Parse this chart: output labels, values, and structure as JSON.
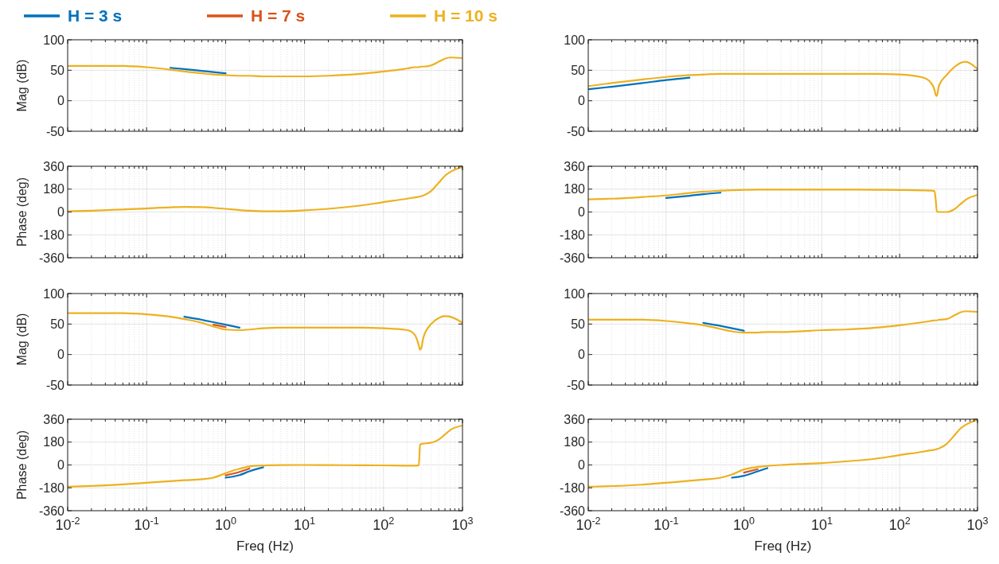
{
  "chart_data": [
    {
      "type": "line",
      "ylabel": "Mag (dB)",
      "log": "x",
      "grid": true,
      "legend": "top",
      "line_style": "solid",
      "tick_labels": "y",
      "xlim": [
        0.01,
        1000
      ],
      "ylim": [
        -50,
        100
      ],
      "yticks": [
        -50,
        0,
        50,
        100
      ],
      "xticks": [
        {
          "value": 0.01,
          "label": null
        },
        {
          "value": 0.1,
          "label": null
        },
        {
          "value": 1,
          "label": null
        },
        {
          "value": 10,
          "label": null
        },
        {
          "value": 100,
          "label": null
        },
        {
          "value": 1000,
          "label": null
        }
      ],
      "x": [
        0.01,
        0.02,
        0.05,
        0.1,
        0.2,
        0.3,
        0.5,
        0.7,
        1,
        1.5,
        2,
        3,
        5,
        10,
        20,
        50,
        100,
        200,
        250,
        280,
        290,
        300,
        320,
        400,
        500,
        600,
        700,
        1000
      ],
      "series": [
        {
          "name": "H = 3 s",
          "color": "#0072bd",
          "values": [
            null,
            null,
            null,
            null,
            54,
            52,
            49,
            47,
            45,
            null,
            null,
            null,
            null,
            null,
            null,
            null,
            null,
            null,
            null,
            null,
            null,
            null,
            null,
            null,
            null,
            null,
            null,
            null
          ]
        },
        {
          "name": "H = 7 s",
          "color": "#d95319",
          "values": [
            null,
            null,
            null,
            null,
            null,
            null,
            null,
            null,
            null,
            null,
            null,
            null,
            null,
            null,
            null,
            null,
            null,
            null,
            null,
            null,
            null,
            null,
            null,
            null,
            null,
            null,
            null,
            null
          ]
        },
        {
          "name": "H = 10 s",
          "color": "#edb120",
          "values": [
            57,
            57,
            57,
            55,
            51,
            48,
            45,
            43,
            42,
            41,
            41,
            40,
            40,
            40,
            41,
            44,
            48,
            53,
            55,
            55,
            56,
            56,
            56,
            58,
            64,
            69,
            71,
            70
          ]
        }
      ]
    },
    {
      "type": "line",
      "log": "x",
      "grid": true,
      "line_style": "solid",
      "tick_labels": "y",
      "xlim": [
        0.01,
        1000
      ],
      "ylim": [
        -50,
        100
      ],
      "yticks": [
        -50,
        0,
        50,
        100
      ],
      "xticks": [
        {
          "value": 0.01,
          "label": null
        },
        {
          "value": 0.1,
          "label": null
        },
        {
          "value": 1,
          "label": null
        },
        {
          "value": 10,
          "label": null
        },
        {
          "value": 100,
          "label": null
        },
        {
          "value": 1000,
          "label": null
        }
      ],
      "x": [
        0.01,
        0.02,
        0.05,
        0.1,
        0.2,
        0.3,
        0.5,
        0.7,
        1,
        1.5,
        2,
        3,
        5,
        10,
        20,
        50,
        100,
        200,
        250,
        280,
        290,
        300,
        320,
        400,
        500,
        600,
        700,
        1000
      ],
      "series": [
        {
          "color": "#0072bd",
          "values": [
            19,
            23,
            29,
            34,
            38,
            null,
            null,
            null,
            null,
            null,
            null,
            null,
            null,
            null,
            null,
            null,
            null,
            null,
            null,
            null,
            null,
            null,
            null,
            null,
            null,
            null,
            null,
            null
          ]
        },
        {
          "color": "#d95319",
          "values": [
            null,
            null,
            null,
            null,
            null,
            null,
            null,
            null,
            null,
            null,
            null,
            null,
            null,
            null,
            null,
            null,
            null,
            null,
            null,
            null,
            null,
            null,
            null,
            null,
            null,
            null,
            null,
            null
          ]
        },
        {
          "color": "#edb120",
          "values": [
            24,
            29,
            35,
            39,
            42,
            43,
            44,
            44,
            44,
            44,
            44,
            44,
            44,
            44,
            44,
            44,
            43,
            38,
            30,
            18,
            10,
            8,
            25,
            42,
            55,
            62,
            64,
            52
          ]
        }
      ]
    },
    {
      "type": "line",
      "ylabel": "Phase (deg)",
      "log": "x",
      "grid": true,
      "line_style": "solid",
      "tick_labels": "y",
      "xlim": [
        0.01,
        1000
      ],
      "ylim": [
        -360,
        360
      ],
      "yticks": [
        -360,
        -180,
        0,
        180,
        360
      ],
      "xticks": [
        {
          "value": 0.01,
          "label": null
        },
        {
          "value": 0.1,
          "label": null
        },
        {
          "value": 1,
          "label": null
        },
        {
          "value": 10,
          "label": null
        },
        {
          "value": 100,
          "label": null
        },
        {
          "value": 1000,
          "label": null
        }
      ],
      "x": [
        0.01,
        0.02,
        0.05,
        0.1,
        0.2,
        0.3,
        0.5,
        0.7,
        1,
        1.5,
        2,
        3,
        5,
        10,
        20,
        50,
        100,
        200,
        250,
        280,
        290,
        300,
        320,
        400,
        500,
        600,
        700,
        1000
      ],
      "series": [
        {
          "color": "#0072bd",
          "values": [
            null,
            null,
            null,
            null,
            null,
            null,
            null,
            null,
            null,
            null,
            null,
            null,
            null,
            null,
            null,
            null,
            null,
            null,
            null,
            null,
            null,
            null,
            null,
            null,
            null,
            null,
            null,
            null
          ]
        },
        {
          "color": "#d95319",
          "values": [
            null,
            null,
            null,
            null,
            null,
            null,
            null,
            null,
            null,
            null,
            null,
            null,
            null,
            null,
            null,
            null,
            null,
            null,
            null,
            null,
            null,
            null,
            null,
            null,
            null,
            null,
            null,
            null
          ]
        },
        {
          "color": "#edb120",
          "values": [
            5,
            10,
            20,
            28,
            37,
            40,
            38,
            33,
            25,
            15,
            10,
            6,
            6,
            13,
            25,
            50,
            78,
            105,
            115,
            120,
            122,
            125,
            130,
            165,
            230,
            285,
            315,
            355
          ]
        }
      ]
    },
    {
      "type": "line",
      "log": "x",
      "grid": true,
      "line_style": "solid",
      "tick_labels": "y",
      "xlim": [
        0.01,
        1000
      ],
      "ylim": [
        -360,
        360
      ],
      "yticks": [
        -360,
        -180,
        0,
        180,
        360
      ],
      "xticks": [
        {
          "value": 0.01,
          "label": null
        },
        {
          "value": 0.1,
          "label": null
        },
        {
          "value": 1,
          "label": null
        },
        {
          "value": 10,
          "label": null
        },
        {
          "value": 100,
          "label": null
        },
        {
          "value": 1000,
          "label": null
        }
      ],
      "x": [
        0.01,
        0.02,
        0.05,
        0.1,
        0.2,
        0.3,
        0.5,
        0.7,
        1,
        1.5,
        2,
        3,
        5,
        10,
        20,
        50,
        100,
        200,
        250,
        280,
        290,
        300,
        320,
        400,
        500,
        600,
        700,
        1000
      ],
      "series": [
        {
          "color": "#0072bd",
          "values": [
            null,
            null,
            null,
            110,
            128,
            140,
            152,
            null,
            null,
            null,
            null,
            null,
            null,
            null,
            null,
            null,
            null,
            null,
            null,
            null,
            null,
            null,
            null,
            null,
            null,
            null,
            null,
            null
          ]
        },
        {
          "color": "#d95319",
          "values": [
            null,
            null,
            null,
            null,
            null,
            null,
            null,
            null,
            null,
            null,
            null,
            null,
            null,
            null,
            null,
            null,
            null,
            null,
            null,
            null,
            null,
            null,
            null,
            null,
            null,
            null,
            null,
            null
          ]
        },
        {
          "color": "#edb120",
          "values": [
            100,
            105,
            118,
            130,
            150,
            160,
            168,
            172,
            174,
            176,
            176,
            176,
            176,
            176,
            176,
            175,
            173,
            170,
            168,
            165,
            100,
            5,
            0,
            0,
            20,
            60,
            95,
            135
          ]
        }
      ]
    },
    {
      "type": "line",
      "ylabel": "Mag (dB)",
      "log": "x",
      "grid": true,
      "line_style": "solid",
      "tick_labels": "y",
      "xlim": [
        0.01,
        1000
      ],
      "ylim": [
        -50,
        100
      ],
      "yticks": [
        -50,
        0,
        50,
        100
      ],
      "xticks": [
        {
          "value": 0.01,
          "label": null
        },
        {
          "value": 0.1,
          "label": null
        },
        {
          "value": 1,
          "label": null
        },
        {
          "value": 10,
          "label": null
        },
        {
          "value": 100,
          "label": null
        },
        {
          "value": 1000,
          "label": null
        }
      ],
      "x": [
        0.01,
        0.02,
        0.05,
        0.1,
        0.2,
        0.3,
        0.5,
        0.7,
        1,
        1.5,
        2,
        3,
        5,
        10,
        20,
        50,
        100,
        200,
        250,
        280,
        290,
        300,
        320,
        400,
        500,
        600,
        700,
        1000
      ],
      "series": [
        {
          "color": "#0072bd",
          "values": [
            null,
            null,
            null,
            null,
            null,
            62,
            57,
            53,
            49,
            44,
            null,
            null,
            null,
            null,
            null,
            null,
            null,
            null,
            null,
            null,
            null,
            null,
            null,
            null,
            null,
            null,
            null,
            null
          ]
        },
        {
          "color": "#d95319",
          "values": [
            null,
            null,
            null,
            null,
            null,
            null,
            null,
            49,
            45,
            null,
            null,
            null,
            null,
            null,
            null,
            null,
            null,
            null,
            null,
            null,
            null,
            null,
            null,
            null,
            null,
            null,
            null,
            null
          ]
        },
        {
          "color": "#edb120",
          "values": [
            68,
            68,
            68,
            66,
            62,
            58,
            52,
            46,
            41,
            40,
            41,
            43,
            44,
            44,
            44,
            44,
            43,
            40,
            32,
            15,
            8,
            10,
            28,
            50,
            60,
            63,
            62,
            52
          ]
        }
      ]
    },
    {
      "type": "line",
      "log": "x",
      "grid": true,
      "line_style": "solid",
      "tick_labels": "y",
      "xlim": [
        0.01,
        1000
      ],
      "ylim": [
        -50,
        100
      ],
      "yticks": [
        -50,
        0,
        50,
        100
      ],
      "xticks": [
        {
          "value": 0.01,
          "label": null
        },
        {
          "value": 0.1,
          "label": null
        },
        {
          "value": 1,
          "label": null
        },
        {
          "value": 10,
          "label": null
        },
        {
          "value": 100,
          "label": null
        },
        {
          "value": 1000,
          "label": null
        }
      ],
      "x": [
        0.01,
        0.02,
        0.05,
        0.1,
        0.2,
        0.3,
        0.5,
        0.7,
        1,
        1.5,
        2,
        3,
        5,
        10,
        20,
        50,
        100,
        200,
        250,
        280,
        290,
        300,
        320,
        400,
        500,
        600,
        700,
        1000
      ],
      "series": [
        {
          "color": "#0072bd",
          "values": [
            null,
            null,
            null,
            null,
            null,
            52,
            47,
            43,
            39,
            null,
            null,
            null,
            null,
            null,
            null,
            null,
            null,
            null,
            null,
            null,
            null,
            null,
            null,
            null,
            null,
            null,
            null,
            null
          ]
        },
        {
          "color": "#d95319",
          "values": [
            null,
            null,
            null,
            null,
            null,
            null,
            null,
            null,
            null,
            null,
            null,
            null,
            null,
            null,
            null,
            null,
            null,
            null,
            null,
            null,
            null,
            null,
            null,
            null,
            null,
            null,
            null,
            null
          ]
        },
        {
          "color": "#edb120",
          "values": [
            57,
            57,
            57,
            55,
            51,
            48,
            42,
            38,
            36,
            36,
            37,
            37,
            38,
            40,
            41,
            44,
            48,
            53,
            55,
            56,
            56,
            56,
            57,
            58,
            64,
            69,
            71,
            70
          ]
        }
      ]
    },
    {
      "type": "line",
      "ylabel": "Phase (deg)",
      "xlabel": "Freq (Hz)",
      "log": "x",
      "grid": true,
      "line_style": "solid",
      "xlim": [
        0.01,
        1000
      ],
      "ylim": [
        -360,
        360
      ],
      "yticks": [
        -360,
        -180,
        0,
        180,
        360
      ],
      "xticks": [
        {
          "value": 0.01,
          "label": "10$^{-2}$"
        },
        {
          "value": 0.1,
          "label": "10$^{-1}$"
        },
        {
          "value": 1,
          "label": "10$^{0}$"
        },
        {
          "value": 10,
          "label": "10$^{1}$"
        },
        {
          "value": 100,
          "label": "10$^{2}$"
        },
        {
          "value": 1000,
          "label": "10$^{3}$"
        }
      ],
      "x": [
        0.01,
        0.02,
        0.05,
        0.1,
        0.2,
        0.3,
        0.5,
        0.7,
        1,
        1.5,
        2,
        3,
        5,
        10,
        20,
        50,
        100,
        200,
        250,
        280,
        290,
        300,
        320,
        400,
        500,
        600,
        700,
        1000
      ],
      "series": [
        {
          "color": "#0072bd",
          "values": [
            null,
            null,
            null,
            null,
            null,
            null,
            null,
            null,
            -100,
            -80,
            -50,
            -18,
            null,
            null,
            null,
            null,
            null,
            null,
            null,
            null,
            null,
            null,
            null,
            null,
            null,
            null,
            null,
            null
          ]
        },
        {
          "color": "#d95319",
          "values": [
            null,
            null,
            null,
            null,
            null,
            null,
            null,
            null,
            -82,
            -55,
            -28,
            null,
            null,
            null,
            null,
            null,
            null,
            null,
            null,
            null,
            null,
            null,
            null,
            null,
            null,
            null,
            null,
            null
          ]
        },
        {
          "color": "#edb120",
          "values": [
            -172,
            -165,
            -153,
            -140,
            -127,
            -120,
            -112,
            -100,
            -65,
            -30,
            -12,
            -4,
            -1,
            0,
            -1,
            -2,
            -3,
            -5,
            -5,
            -2,
            160,
            165,
            168,
            175,
            200,
            240,
            275,
            310
          ]
        }
      ]
    },
    {
      "type": "line",
      "xlabel": "Freq (Hz)",
      "log": "x",
      "grid": true,
      "line_style": "solid",
      "xlim": [
        0.01,
        1000
      ],
      "ylim": [
        -360,
        360
      ],
      "yticks": [
        -360,
        -180,
        0,
        180,
        360
      ],
      "xticks": [
        {
          "value": 0.01,
          "label": "10$^{-2}$"
        },
        {
          "value": 0.1,
          "label": "10$^{-1}$"
        },
        {
          "value": 1,
          "label": "10$^{0}$"
        },
        {
          "value": 10,
          "label": "10$^{1}$"
        },
        {
          "value": 100,
          "label": "10$^{2}$"
        },
        {
          "value": 1000,
          "label": "10$^{3}$"
        }
      ],
      "x": [
        0.01,
        0.02,
        0.05,
        0.1,
        0.2,
        0.3,
        0.5,
        0.7,
        1,
        1.5,
        2,
        3,
        5,
        10,
        20,
        50,
        100,
        200,
        250,
        280,
        290,
        300,
        320,
        400,
        500,
        600,
        700,
        1000
      ],
      "series": [
        {
          "color": "#0072bd",
          "values": [
            null,
            null,
            null,
            null,
            null,
            null,
            null,
            -100,
            -85,
            -50,
            -25,
            null,
            null,
            null,
            null,
            null,
            null,
            null,
            null,
            null,
            null,
            null,
            null,
            null,
            null,
            null,
            null,
            null
          ]
        },
        {
          "color": "#d95319",
          "values": [
            null,
            null,
            null,
            null,
            null,
            null,
            null,
            null,
            -60,
            -33,
            null,
            null,
            null,
            null,
            null,
            null,
            null,
            null,
            null,
            null,
            null,
            null,
            null,
            null,
            null,
            null,
            null,
            null
          ]
        },
        {
          "color": "#edb120",
          "values": [
            -172,
            -166,
            -155,
            -140,
            -125,
            -115,
            -100,
            -75,
            -35,
            -15,
            -8,
            0,
            7,
            15,
            28,
            50,
            78,
            105,
            115,
            120,
            122,
            125,
            130,
            165,
            230,
            285,
            315,
            355
          ]
        }
      ]
    }
  ]
}
